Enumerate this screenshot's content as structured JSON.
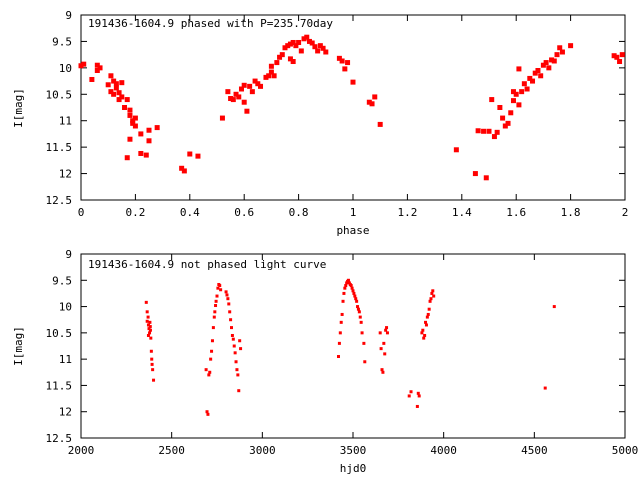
{
  "colors": {
    "points": "#ff0000",
    "axes": "#000000",
    "background": "#ffffff"
  },
  "chart_data": [
    {
      "type": "scatter",
      "title": "191436-1604.9 phased with P=235.70day",
      "xlabel": "phase",
      "ylabel": "I[mag]",
      "xlim": [
        0,
        2
      ],
      "ylim": [
        9,
        12.5
      ],
      "y_inverted": true,
      "grid": false,
      "legend": "none",
      "xticks": [
        0,
        0.2,
        0.4,
        0.6,
        0.8,
        1,
        1.2,
        1.4,
        1.6,
        1.8,
        2
      ],
      "xtick_labels": [
        "0",
        "0.2",
        "0.4",
        "0.6",
        "0.8",
        "1",
        "1.2",
        "1.4",
        "1.6",
        "1.8",
        "2"
      ],
      "yticks": [
        9,
        9.5,
        10,
        10.5,
        11,
        11.5,
        12,
        12.5
      ],
      "ytick_labels": [
        "9",
        "9.5",
        "10",
        "10.5",
        "11",
        "11.5",
        "12",
        "12.5"
      ],
      "marker": "square",
      "points": [
        [
          0.0,
          9.96
        ],
        [
          0.01,
          9.93
        ],
        [
          0.04,
          10.22
        ],
        [
          0.06,
          10.05
        ],
        [
          0.07,
          10.0
        ],
        [
          0.06,
          9.95
        ],
        [
          0.1,
          10.32
        ],
        [
          0.11,
          10.45
        ],
        [
          0.12,
          10.5
        ],
        [
          0.11,
          10.15
        ],
        [
          0.12,
          10.25
        ],
        [
          0.13,
          10.38
        ],
        [
          0.14,
          10.47
        ],
        [
          0.15,
          10.55
        ],
        [
          0.13,
          10.3
        ],
        [
          0.15,
          10.28
        ],
        [
          0.14,
          10.6
        ],
        [
          0.16,
          10.75
        ],
        [
          0.17,
          10.6
        ],
        [
          0.18,
          10.8
        ],
        [
          0.18,
          10.9
        ],
        [
          0.19,
          11.0
        ],
        [
          0.19,
          11.05
        ],
        [
          0.2,
          11.1
        ],
        [
          0.2,
          10.95
        ],
        [
          0.18,
          11.35
        ],
        [
          0.17,
          11.7
        ],
        [
          0.22,
          11.25
        ],
        [
          0.22,
          11.62
        ],
        [
          0.24,
          11.65
        ],
        [
          0.25,
          11.38
        ],
        [
          0.25,
          11.18
        ],
        [
          0.28,
          11.13
        ],
        [
          0.37,
          11.9
        ],
        [
          0.38,
          11.95
        ],
        [
          0.4,
          11.63
        ],
        [
          0.43,
          11.67
        ],
        [
          0.52,
          10.95
        ],
        [
          0.54,
          10.45
        ],
        [
          0.55,
          10.58
        ],
        [
          0.56,
          10.6
        ],
        [
          0.57,
          10.5
        ],
        [
          0.58,
          10.55
        ],
        [
          0.59,
          10.4
        ],
        [
          0.6,
          10.33
        ],
        [
          0.6,
          10.65
        ],
        [
          0.61,
          10.82
        ],
        [
          0.62,
          10.35
        ],
        [
          0.63,
          10.45
        ],
        [
          0.64,
          10.25
        ],
        [
          0.65,
          10.3
        ],
        [
          0.66,
          10.35
        ],
        [
          0.68,
          10.18
        ],
        [
          0.69,
          10.15
        ],
        [
          0.7,
          10.08
        ],
        [
          0.7,
          9.97
        ],
        [
          0.71,
          10.15
        ],
        [
          0.72,
          9.9
        ],
        [
          0.73,
          9.8
        ],
        [
          0.74,
          9.75
        ],
        [
          0.75,
          9.62
        ],
        [
          0.76,
          9.58
        ],
        [
          0.77,
          9.55
        ],
        [
          0.78,
          9.52
        ],
        [
          0.77,
          9.83
        ],
        [
          0.78,
          9.88
        ],
        [
          0.79,
          9.58
        ],
        [
          0.8,
          9.52
        ],
        [
          0.81,
          9.68
        ],
        [
          0.82,
          9.45
        ],
        [
          0.83,
          9.42
        ],
        [
          0.84,
          9.5
        ],
        [
          0.85,
          9.53
        ],
        [
          0.86,
          9.6
        ],
        [
          0.87,
          9.68
        ],
        [
          0.88,
          9.58
        ],
        [
          0.89,
          9.63
        ],
        [
          0.9,
          9.7
        ],
        [
          0.95,
          9.82
        ],
        [
          0.96,
          9.87
        ],
        [
          0.97,
          10.02
        ],
        [
          0.98,
          9.9
        ],
        [
          1.0,
          10.27
        ],
        [
          1.06,
          10.65
        ],
        [
          1.07,
          10.68
        ],
        [
          1.08,
          10.55
        ],
        [
          1.1,
          11.07
        ],
        [
          1.38,
          11.55
        ],
        [
          1.45,
          12.0
        ],
        [
          1.46,
          11.19
        ],
        [
          1.48,
          11.2
        ],
        [
          1.49,
          12.08
        ],
        [
          1.5,
          11.2
        ],
        [
          1.51,
          10.6
        ],
        [
          1.52,
          11.3
        ],
        [
          1.53,
          11.22
        ],
        [
          1.54,
          10.75
        ],
        [
          1.55,
          10.95
        ],
        [
          1.56,
          11.1
        ],
        [
          1.57,
          11.05
        ],
        [
          1.58,
          10.85
        ],
        [
          1.59,
          10.45
        ],
        [
          1.59,
          10.62
        ],
        [
          1.6,
          10.5
        ],
        [
          1.61,
          10.02
        ],
        [
          1.61,
          10.7
        ],
        [
          1.62,
          10.45
        ],
        [
          1.63,
          10.3
        ],
        [
          1.64,
          10.4
        ],
        [
          1.65,
          10.2
        ],
        [
          1.66,
          10.25
        ],
        [
          1.67,
          10.1
        ],
        [
          1.68,
          10.05
        ],
        [
          1.69,
          10.15
        ],
        [
          1.7,
          9.95
        ],
        [
          1.71,
          9.9
        ],
        [
          1.72,
          10.0
        ],
        [
          1.73,
          9.85
        ],
        [
          1.74,
          9.87
        ],
        [
          1.75,
          9.75
        ],
        [
          1.76,
          9.62
        ],
        [
          1.77,
          9.7
        ],
        [
          1.8,
          9.58
        ],
        [
          1.96,
          9.77
        ],
        [
          1.97,
          9.8
        ],
        [
          1.98,
          9.88
        ],
        [
          1.99,
          9.75
        ]
      ]
    },
    {
      "type": "scatter",
      "title": "191436-1604.9 not phased light curve",
      "xlabel": "hjd0",
      "ylabel": "I[mag]",
      "xlim": [
        2000,
        5000
      ],
      "ylim": [
        9,
        12.5
      ],
      "y_inverted": true,
      "grid": false,
      "legend": "none",
      "xticks": [
        2000,
        2500,
        3000,
        3500,
        4000,
        4500,
        5000
      ],
      "xtick_labels": [
        "2000",
        "2500",
        "3000",
        "3500",
        "4000",
        "4500",
        "5000"
      ],
      "yticks": [
        9,
        9.5,
        10,
        10.5,
        11,
        11.5,
        12,
        12.5
      ],
      "ytick_labels": [
        "9",
        "9.5",
        "10",
        "10.5",
        "11",
        "11.5",
        "12",
        "12.5"
      ],
      "marker": "small-square",
      "points": [
        [
          2360,
          9.92
        ],
        [
          2365,
          10.1
        ],
        [
          2370,
          10.2
        ],
        [
          2372,
          10.35
        ],
        [
          2375,
          10.42
        ],
        [
          2378,
          10.5
        ],
        [
          2380,
          10.3
        ],
        [
          2383,
          10.45
        ],
        [
          2385,
          10.6
        ],
        [
          2388,
          10.85
        ],
        [
          2390,
          11.0
        ],
        [
          2392,
          11.1
        ],
        [
          2395,
          11.2
        ],
        [
          2400,
          11.4
        ],
        [
          2365,
          10.28
        ],
        [
          2372,
          10.55
        ],
        [
          2382,
          10.38
        ],
        [
          2690,
          11.2
        ],
        [
          2695,
          12.0
        ],
        [
          2700,
          12.05
        ],
        [
          2705,
          11.3
        ],
        [
          2710,
          11.25
        ],
        [
          2715,
          11.0
        ],
        [
          2720,
          10.85
        ],
        [
          2725,
          10.65
        ],
        [
          2730,
          10.4
        ],
        [
          2735,
          10.2
        ],
        [
          2738,
          10.1
        ],
        [
          2742,
          9.98
        ],
        [
          2745,
          9.9
        ],
        [
          2750,
          9.8
        ],
        [
          2755,
          9.65
        ],
        [
          2760,
          9.58
        ],
        [
          2765,
          9.6
        ],
        [
          2770,
          9.68
        ],
        [
          2800,
          9.72
        ],
        [
          2805,
          9.78
        ],
        [
          2810,
          9.85
        ],
        [
          2815,
          9.95
        ],
        [
          2820,
          10.1
        ],
        [
          2825,
          10.25
        ],
        [
          2830,
          10.4
        ],
        [
          2835,
          10.55
        ],
        [
          2840,
          10.62
        ],
        [
          2845,
          10.75
        ],
        [
          2850,
          10.88
        ],
        [
          2855,
          11.05
        ],
        [
          2860,
          11.2
        ],
        [
          2865,
          11.3
        ],
        [
          2870,
          11.6
        ],
        [
          2875,
          10.65
        ],
        [
          2880,
          10.8
        ],
        [
          3420,
          10.95
        ],
        [
          3425,
          10.7
        ],
        [
          3430,
          10.5
        ],
        [
          3435,
          10.3
        ],
        [
          3440,
          10.15
        ],
        [
          3445,
          9.9
        ],
        [
          3450,
          9.75
        ],
        [
          3455,
          9.65
        ],
        [
          3460,
          9.6
        ],
        [
          3465,
          9.55
        ],
        [
          3470,
          9.52
        ],
        [
          3475,
          9.5
        ],
        [
          3480,
          9.55
        ],
        [
          3485,
          9.58
        ],
        [
          3490,
          9.6
        ],
        [
          3495,
          9.65
        ],
        [
          3500,
          9.7
        ],
        [
          3505,
          9.75
        ],
        [
          3510,
          9.8
        ],
        [
          3515,
          9.85
        ],
        [
          3520,
          9.9
        ],
        [
          3525,
          10.0
        ],
        [
          3530,
          10.05
        ],
        [
          3535,
          10.1
        ],
        [
          3540,
          10.2
        ],
        [
          3545,
          10.3
        ],
        [
          3550,
          10.5
        ],
        [
          3560,
          10.7
        ],
        [
          3565,
          11.05
        ],
        [
          3650,
          10.5
        ],
        [
          3655,
          10.8
        ],
        [
          3660,
          11.2
        ],
        [
          3665,
          11.25
        ],
        [
          3670,
          10.7
        ],
        [
          3675,
          10.9
        ],
        [
          3680,
          10.45
        ],
        [
          3685,
          10.4
        ],
        [
          3690,
          10.5
        ],
        [
          3810,
          11.7
        ],
        [
          3820,
          11.62
        ],
        [
          3855,
          11.9
        ],
        [
          3860,
          11.65
        ],
        [
          3865,
          11.7
        ],
        [
          3880,
          10.5
        ],
        [
          3885,
          10.45
        ],
        [
          3890,
          10.6
        ],
        [
          3895,
          10.55
        ],
        [
          3900,
          10.3
        ],
        [
          3905,
          10.35
        ],
        [
          3910,
          10.2
        ],
        [
          3915,
          10.15
        ],
        [
          3920,
          10.05
        ],
        [
          3925,
          9.9
        ],
        [
          3930,
          9.85
        ],
        [
          3935,
          9.75
        ],
        [
          3940,
          9.7
        ],
        [
          3945,
          9.8
        ],
        [
          4560,
          11.55
        ],
        [
          4610,
          10.0
        ]
      ]
    }
  ]
}
